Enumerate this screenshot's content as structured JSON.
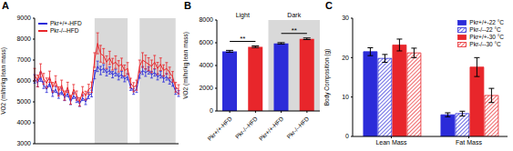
{
  "chart_data": [
    {
      "title": "A",
      "type": "line",
      "y_label": "VO2 (ml/hr/kg lean mass)",
      "x": [
        0,
        1,
        2,
        3,
        4,
        5,
        6,
        7,
        8,
        9,
        10,
        11,
        12,
        13,
        14,
        15,
        16,
        17,
        18,
        19,
        20,
        21,
        22,
        23,
        24,
        25,
        26,
        27,
        28,
        29,
        30,
        31,
        32,
        33,
        34,
        35,
        36,
        37,
        38,
        39,
        40,
        41,
        42,
        43,
        44,
        45,
        46,
        47,
        48
      ],
      "xlim": [
        0,
        48
      ],
      "ylim": [
        3000,
        9000
      ],
      "yticks": [
        3000,
        4000,
        5000,
        6000,
        7000,
        8000,
        9000
      ],
      "tick_labels": "y",
      "legend": "upper left",
      "dark_periods": [
        [
          20,
          31
        ],
        [
          35,
          47
        ]
      ],
      "series": [
        {
          "name": "Pkr+/+-HFD",
          "color": "#2b2bd9",
          "values": [
            6100,
            5900,
            6200,
            5800,
            5600,
            5900,
            5400,
            5600,
            5300,
            5500,
            5200,
            5400,
            5000,
            5300,
            5100,
            4900,
            5200,
            5000,
            5300,
            5400,
            6300,
            6700,
            6500,
            6600,
            6400,
            6500,
            6300,
            6400,
            6200,
            6300,
            6100,
            6200,
            5700,
            5500,
            5600,
            6300,
            6500,
            6400,
            6500,
            6300,
            6400,
            6200,
            6300,
            6100,
            6200,
            6000,
            5900,
            5500,
            5400
          ],
          "errors": [
            200,
            180,
            220,
            160,
            150,
            170,
            140,
            150,
            130,
            150,
            140,
            150,
            130,
            140,
            130,
            120,
            140,
            130,
            150,
            160,
            200,
            250,
            200,
            180,
            160,
            170,
            150,
            160,
            150,
            160,
            140,
            150,
            150,
            140,
            150,
            170,
            190,
            180,
            170,
            160,
            170,
            150,
            160,
            150,
            160,
            150,
            150,
            140,
            140
          ]
        },
        {
          "name": "Pkr-/--HFD",
          "color": "#e8262b",
          "values": [
            6300,
            6000,
            6500,
            6100,
            5900,
            6200,
            5700,
            6000,
            5500,
            5800,
            5300,
            5700,
            5100,
            5600,
            5300,
            5000,
            5500,
            5300,
            5600,
            5700,
            7000,
            7800,
            7300,
            7200,
            6900,
            7100,
            6800,
            6900,
            6700,
            6800,
            6500,
            6600,
            5900,
            5700,
            5800,
            6700,
            7000,
            6900,
            6800,
            6700,
            6900,
            6600,
            6800,
            6500,
            6600,
            6400,
            6200,
            5700,
            5600
          ],
          "errors": [
            300,
            280,
            320,
            260,
            240,
            270,
            230,
            250,
            220,
            240,
            220,
            240,
            210,
            230,
            220,
            200,
            230,
            210,
            240,
            250,
            350,
            500,
            400,
            350,
            300,
            320,
            280,
            300,
            270,
            290,
            260,
            280,
            230,
            220,
            240,
            300,
            350,
            330,
            310,
            300,
            320,
            290,
            300,
            270,
            280,
            260,
            250,
            230,
            220
          ]
        }
      ]
    },
    {
      "title": "B",
      "type": "bar",
      "y_label": "VO2 (ml/hr/kg lean mass)",
      "categories": [
        "Pkr+/+-HFD",
        "Pkr-/--HFD",
        "Pkr+/+-HFD",
        "Pkr-/--HFD"
      ],
      "values": [
        5250,
        5650,
        5950,
        6350
      ],
      "errors": [
        80,
        70,
        60,
        70
      ],
      "colors": [
        "#2b2bd9",
        "#e8262b",
        "#2b2bd9",
        "#e8262b"
      ],
      "ylim": [
        0,
        8000
      ],
      "yticks": [
        0,
        2000,
        4000,
        6000,
        8000
      ],
      "groups": [
        {
          "label": "Light",
          "categories": [
            0,
            1
          ]
        },
        {
          "label": "Dark",
          "categories": [
            2,
            3
          ]
        }
      ],
      "shaded_groups": [
        "Dark"
      ],
      "annotations": [
        {
          "text": "**",
          "categories": [
            0,
            1
          ]
        },
        {
          "text": "**",
          "categories": [
            2,
            3
          ]
        }
      ]
    },
    {
      "title": "C",
      "type": "bar",
      "y_label": "Body Composition (g)",
      "categories": [
        "Lean Mass",
        "Fat Mass"
      ],
      "ylim": [
        0,
        30
      ],
      "yticks": [
        0,
        10,
        20,
        30
      ],
      "legend": "upper right",
      "series": [
        {
          "name": "Pkr+/+-22 °C",
          "color": "#2b2bd9",
          "values": [
            21.5,
            5.5
          ],
          "errors": [
            1.0,
            0.5
          ]
        },
        {
          "name": "Pkr-/--22 °C",
          "color": "#2b2bd9",
          "marker": "hatched",
          "values": [
            19.8,
            5.8
          ],
          "errors": [
            1.0,
            0.6
          ]
        },
        {
          "name": "Pkr+/+-30 °C",
          "color": "#e8262b",
          "values": [
            23.2,
            17.6
          ],
          "errors": [
            1.5,
            2.4
          ]
        },
        {
          "name": "Pkr-/--30 °C",
          "color": "#e8262b",
          "marker": "hatched",
          "values": [
            21.2,
            10.4
          ],
          "errors": [
            1.2,
            1.8
          ]
        }
      ]
    }
  ]
}
